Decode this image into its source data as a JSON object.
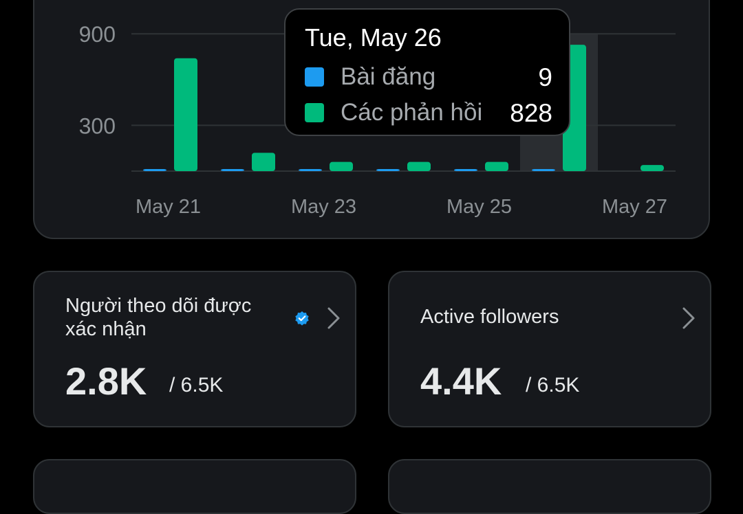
{
  "chart_data": {
    "type": "bar",
    "categories": [
      "May 21",
      "May 22",
      "May 23",
      "May 24",
      "May 25",
      "May 26",
      "May 27"
    ],
    "x_tick_labels": [
      "May 21",
      "May 23",
      "May 25",
      "May 27"
    ],
    "y_tick_labels": [
      "900",
      "300"
    ],
    "series": [
      {
        "name": "Bài đăng",
        "color": "#1d9bf0",
        "values": [
          6,
          6,
          6,
          6,
          3,
          9,
          0
        ]
      },
      {
        "name": "Các phản hồi",
        "color": "#00ba7c",
        "values": [
          740,
          120,
          60,
          60,
          60,
          828,
          40
        ]
      }
    ],
    "ylim": [
      0,
      1000
    ],
    "grid": true,
    "highlighted_category": "May 26"
  },
  "tooltip": {
    "date": "Tue, May 26",
    "rows": [
      {
        "label": "Bài đăng",
        "value": "9",
        "color": "#1d9bf0"
      },
      {
        "label": "Các phản hồi",
        "value": "828",
        "color": "#00ba7c"
      }
    ]
  },
  "cards": {
    "verified": {
      "title": "Người theo dõi được xác nhận",
      "value": "2.8K",
      "total": "/ 6.5K",
      "icon": "verified-badge-icon",
      "chevron": "chevron-right-icon"
    },
    "active": {
      "title": "Active followers",
      "value": "4.4K",
      "total": "/ 6.5K",
      "chevron": "chevron-right-icon"
    }
  }
}
